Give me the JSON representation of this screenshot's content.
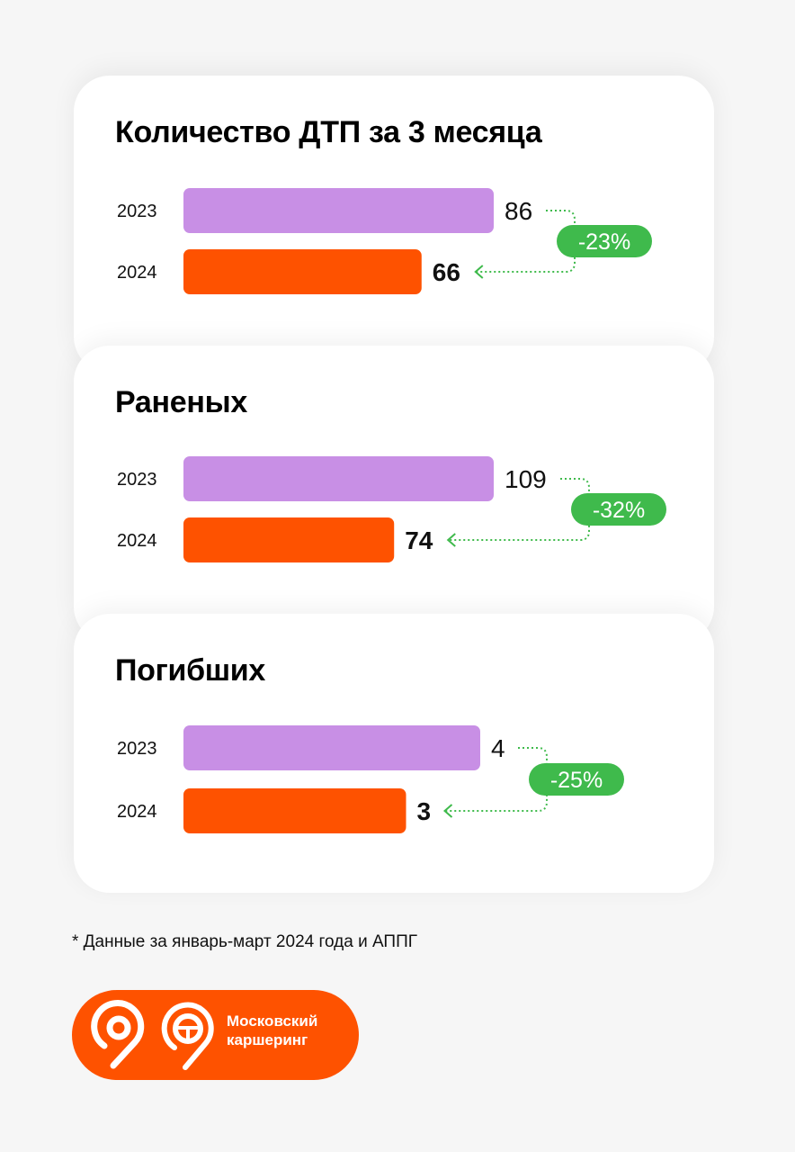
{
  "colors": {
    "bar_2023": "#c88fe5",
    "bar_2024": "#fe5200",
    "change_badge": "#3fba4c",
    "brand": "#fe5200"
  },
  "chart_data": [
    {
      "type": "bar",
      "orientation": "horizontal",
      "title": "Количество ДТП за 3 месяца",
      "categories": [
        "2023",
        "2024"
      ],
      "values": [
        86,
        66
      ],
      "value_labels": [
        "86",
        "66"
      ],
      "change": "-23%"
    },
    {
      "type": "bar",
      "orientation": "horizontal",
      "title": "Раненых",
      "categories": [
        "2023",
        "2024"
      ],
      "values": [
        109,
        74
      ],
      "value_labels": [
        "109",
        "74"
      ],
      "change": "-32%"
    },
    {
      "type": "bar",
      "orientation": "horizontal",
      "title": "Погибших",
      "categories": [
        "2023",
        "2024"
      ],
      "values": [
        4,
        3
      ],
      "value_labels": [
        "4",
        "3"
      ],
      "change": "-25%"
    }
  ],
  "footnote": "* Данные за январь-март 2024 года и АППГ",
  "brand": {
    "name_line1": "Московский",
    "name_line2": "каршеринг",
    "icons": [
      "nine-logo-icon",
      "steering-wheel-logo-icon"
    ]
  }
}
